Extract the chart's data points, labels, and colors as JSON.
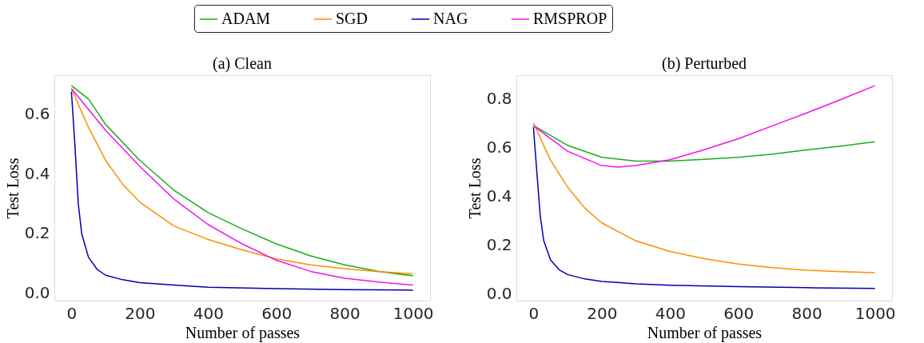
{
  "chart_data": [
    {
      "type": "line",
      "title": "(a) Clean",
      "xlabel": "Number of passes",
      "ylabel": "Test Loss",
      "xlim": [
        -50,
        1050
      ],
      "ylim": [
        -0.025,
        0.73
      ],
      "xticks": [
        0,
        200,
        400,
        600,
        800,
        1000
      ],
      "yticks": [
        {
          "value": 0,
          "label": "0.0"
        },
        0.2,
        0.4,
        0.6
      ],
      "grid": false,
      "legend": "top",
      "marker": "none",
      "line_style": "solid",
      "series": [
        {
          "name": "ADAM",
          "color": "#1aab1a",
          "x": [
            0,
            50,
            100,
            200,
            300,
            400,
            500,
            600,
            700,
            800,
            900,
            1000
          ],
          "values": [
            0.695,
            0.65,
            0.565,
            0.445,
            0.345,
            0.27,
            0.215,
            0.165,
            0.125,
            0.095,
            0.073,
            0.058
          ]
        },
        {
          "name": "SGD",
          "color": "#ff8c00",
          "x": [
            0,
            50,
            100,
            150,
            200,
            300,
            400,
            500,
            600,
            700,
            800,
            900,
            1000
          ],
          "values": [
            0.685,
            0.555,
            0.445,
            0.365,
            0.305,
            0.225,
            0.18,
            0.145,
            0.115,
            0.095,
            0.082,
            0.072,
            0.065
          ]
        },
        {
          "name": "NAG",
          "color": "#0000b0",
          "x": [
            0,
            10,
            20,
            30,
            50,
            75,
            100,
            150,
            200,
            300,
            400,
            600,
            800,
            1000
          ],
          "values": [
            0.675,
            0.5,
            0.3,
            0.2,
            0.12,
            0.08,
            0.06,
            0.045,
            0.035,
            0.027,
            0.02,
            0.015,
            0.012,
            0.01
          ]
        },
        {
          "name": "RMSPROP",
          "color": "#f010f0",
          "x": [
            0,
            100,
            200,
            300,
            400,
            500,
            600,
            700,
            800,
            900,
            1000
          ],
          "values": [
            0.685,
            0.545,
            0.425,
            0.315,
            0.23,
            0.165,
            0.11,
            0.073,
            0.05,
            0.037,
            0.027
          ]
        }
      ]
    },
    {
      "type": "line",
      "title": "(b) Perturbed",
      "xlabel": "Number of passes",
      "ylabel": "Test Loss",
      "xlim": [
        -50,
        1050
      ],
      "ylim": [
        -0.027,
        0.898
      ],
      "xticks": [
        0,
        200,
        400,
        600,
        800,
        1000
      ],
      "yticks": [
        {
          "value": 0,
          "label": "0.0"
        },
        0.2,
        0.4,
        0.6,
        0.8
      ],
      "grid": false,
      "legend": "top",
      "marker": "none",
      "line_style": "solid",
      "series": [
        {
          "name": "ADAM",
          "color": "#1aab1a",
          "x": [
            0,
            100,
            200,
            300,
            400,
            500,
            600,
            700,
            800,
            900,
            1000
          ],
          "values": [
            0.692,
            0.61,
            0.561,
            0.545,
            0.545,
            0.553,
            0.561,
            0.574,
            0.591,
            0.607,
            0.625
          ]
        },
        {
          "name": "SGD",
          "color": "#ff8c00",
          "x": [
            0,
            50,
            100,
            150,
            200,
            300,
            400,
            500,
            600,
            700,
            800,
            900,
            1000
          ],
          "values": [
            0.702,
            0.549,
            0.439,
            0.353,
            0.292,
            0.218,
            0.175,
            0.145,
            0.123,
            0.108,
            0.098,
            0.092,
            0.088
          ]
        },
        {
          "name": "NAG",
          "color": "#0000b0",
          "x": [
            0,
            10,
            20,
            30,
            50,
            75,
            100,
            150,
            200,
            300,
            400,
            600,
            800,
            1000
          ],
          "values": [
            0.685,
            0.5,
            0.32,
            0.22,
            0.14,
            0.1,
            0.08,
            0.062,
            0.052,
            0.042,
            0.036,
            0.03,
            0.026,
            0.023
          ]
        },
        {
          "name": "RMSPROP",
          "color": "#f010f0",
          "x": [
            0,
            100,
            200,
            250,
            300,
            400,
            500,
            600,
            700,
            800,
            900,
            1000
          ],
          "values": [
            0.69,
            0.586,
            0.527,
            0.521,
            0.527,
            0.551,
            0.592,
            0.637,
            0.69,
            0.743,
            0.798,
            0.855
          ]
        }
      ]
    }
  ]
}
